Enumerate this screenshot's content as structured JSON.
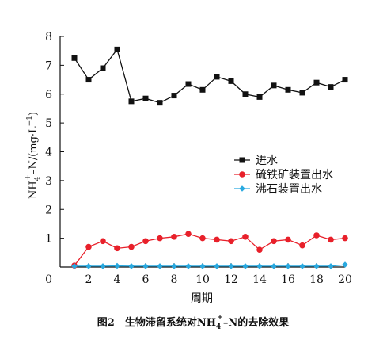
{
  "chart_data": {
    "type": "line",
    "xlabel": "周期",
    "ylabel": {
      "base": "NH",
      "sub": "4",
      "sup": "+",
      "rest": "–N/(mg·L",
      "rest_sup": "−1",
      "close": ")"
    },
    "xlim": [
      0,
      20
    ],
    "ylim": [
      0,
      8
    ],
    "xticks": [
      2,
      4,
      6,
      8,
      10,
      12,
      14,
      16,
      18,
      20
    ],
    "yticks": [
      1,
      2,
      3,
      4,
      5,
      6,
      7,
      8
    ],
    "origin_label": "0",
    "legend_position": "center-right",
    "series": [
      {
        "name": "进水",
        "color": "#111111",
        "marker": "square",
        "x": [
          1,
          2,
          3,
          4,
          5,
          6,
          7,
          8,
          9,
          10,
          11,
          12,
          13,
          14,
          15,
          16,
          17,
          18,
          19,
          20
        ],
        "values": [
          7.25,
          6.5,
          6.9,
          7.55,
          5.75,
          5.85,
          5.7,
          5.95,
          6.35,
          6.15,
          6.6,
          6.45,
          6.0,
          5.9,
          6.3,
          6.15,
          6.05,
          6.4,
          6.25,
          6.5
        ]
      },
      {
        "name": "硫铁矿装置出水",
        "color": "#e8202a",
        "marker": "circle",
        "x": [
          1,
          2,
          3,
          4,
          5,
          6,
          7,
          8,
          9,
          10,
          11,
          12,
          13,
          14,
          15,
          16,
          17,
          18,
          19,
          20
        ],
        "values": [
          0.05,
          0.7,
          0.9,
          0.65,
          0.7,
          0.9,
          1.0,
          1.05,
          1.15,
          1.0,
          0.95,
          0.9,
          1.05,
          0.6,
          0.9,
          0.95,
          0.75,
          1.1,
          0.95,
          1.0
        ]
      },
      {
        "name": "沸石装置出水",
        "color": "#29a9e0",
        "marker": "diamond",
        "x": [
          1,
          2,
          3,
          4,
          5,
          6,
          7,
          8,
          9,
          10,
          11,
          12,
          13,
          14,
          15,
          16,
          17,
          18,
          19,
          20
        ],
        "values": [
          0.03,
          0.03,
          0.03,
          0.04,
          0.03,
          0.03,
          0.03,
          0.03,
          0.03,
          0.03,
          0.03,
          0.03,
          0.03,
          0.03,
          0.03,
          0.03,
          0.03,
          0.03,
          0.03,
          0.08
        ]
      }
    ]
  },
  "caption": {
    "prefix": "图2　生物滞留系统对NH",
    "sub": "4",
    "sup": "+",
    "suffix": "–N的去除效果"
  }
}
